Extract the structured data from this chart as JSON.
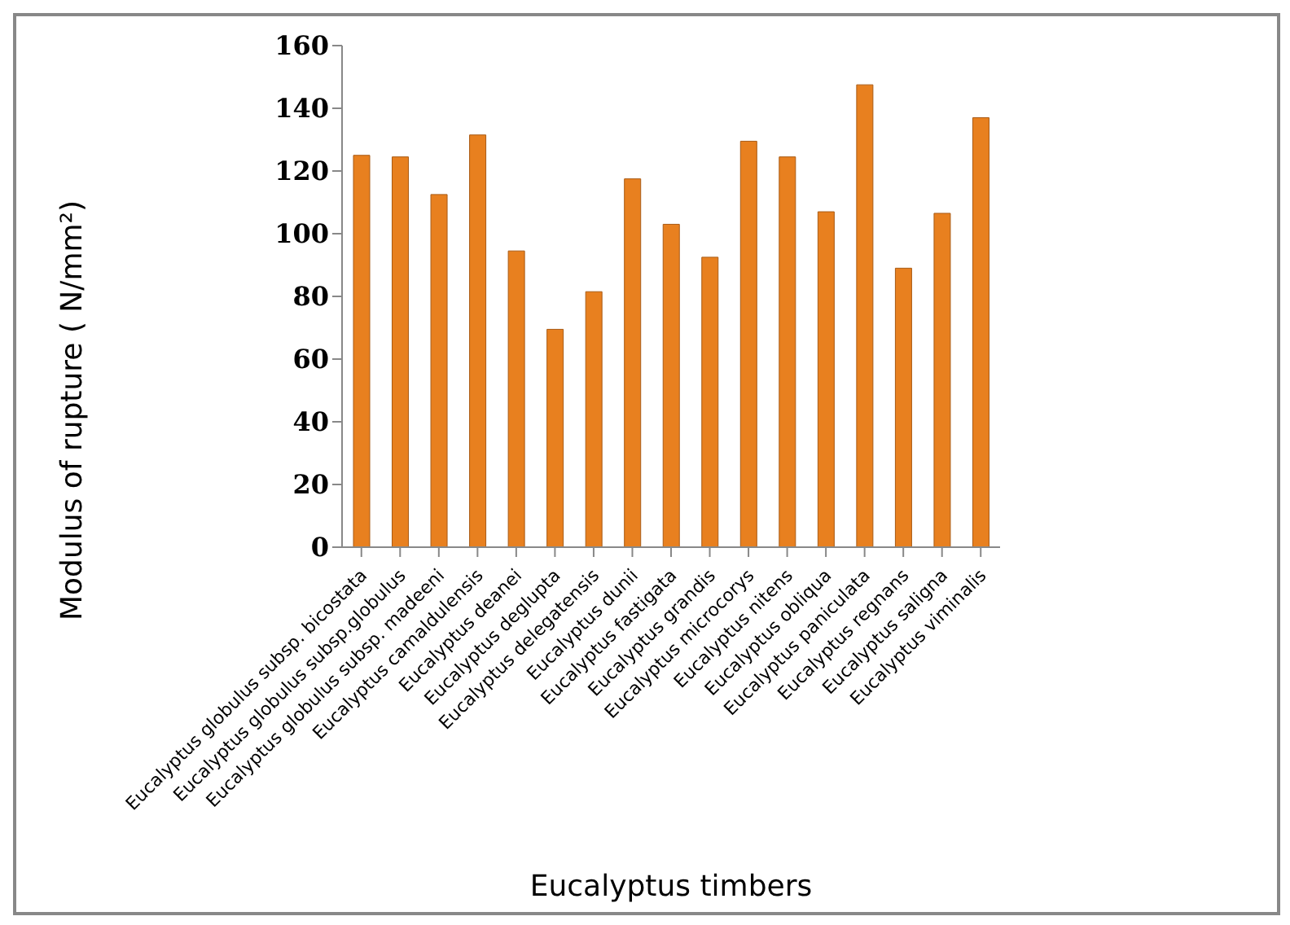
{
  "chart_data": {
    "type": "bar",
    "xlabel": "Eucalyptus timbers",
    "ylabel": "Modulus of rupture ( N/mm²)",
    "categories": [
      "Eucalyptus globulus subsp. bicostata",
      "Eucalyptus globulus subsp.globulus",
      "Eucalyptus  globulus subsp. madeeni",
      "Eucalyptus camaldulensis",
      "Eucalyptus deanei",
      "Eucalyptus deglupta",
      "Eucalyptus delegatensis",
      "Eucalyptus dunii",
      "Eucalyptus fastigata",
      "Eucalyptus grandis",
      "Eucalyptus microcorys",
      "Eucalyptus nitens",
      "Eucalyptus obliqua",
      "Eucalyptus paniculata",
      "Eucalyptus regnans",
      "Eucalyptus saligna",
      "Eucalyptus viminalis"
    ],
    "values": [
      125,
      124.5,
      112.5,
      131.5,
      94.5,
      69.5,
      81.5,
      117.5,
      103,
      92.5,
      129.5,
      124.5,
      107,
      147.5,
      89,
      106.5,
      137
    ],
    "color": "#e8801f",
    "ylim": [
      0,
      160
    ],
    "yticks": [
      0,
      20,
      40,
      60,
      80,
      100,
      120,
      140,
      160
    ]
  }
}
